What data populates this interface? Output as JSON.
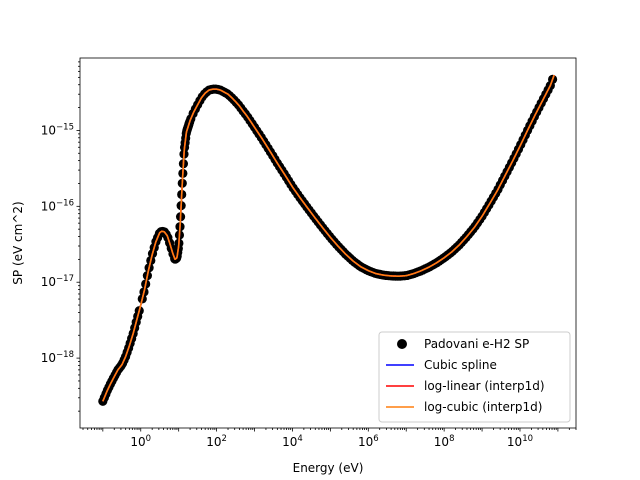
{
  "chart_data": {
    "type": "scatter",
    "title": "",
    "xlabel": "Energy (eV)",
    "ylabel": "SP (eV cm^2)",
    "xscale": "log",
    "yscale": "log",
    "xlim": [
      0.025,
      300000000000
    ],
    "ylim": [
      1.2e-19,
      9e-15
    ],
    "grid": false,
    "legend_position": "lower-right",
    "x_ticks": [
      {
        "base": "10",
        "exp": "0",
        "value": 1
      },
      {
        "base": "10",
        "exp": "2",
        "value": 100
      },
      {
        "base": "10",
        "exp": "4",
        "value": 10000
      },
      {
        "base": "10",
        "exp": "6",
        "value": 1000000
      },
      {
        "base": "10",
        "exp": "8",
        "value": 100000000
      },
      {
        "base": "10",
        "exp": "10",
        "value": 10000000000
      }
    ],
    "y_ticks": [
      {
        "base": "10",
        "exp": "−18",
        "value": 1e-18
      },
      {
        "base": "10",
        "exp": "−17",
        "value": 1e-17
      },
      {
        "base": "10",
        "exp": "−16",
        "value": 1e-16
      },
      {
        "base": "10",
        "exp": "−15",
        "value": 1e-15
      }
    ],
    "series": [
      {
        "name": "Padovani e-H2 SP",
        "kind": "scatter",
        "color": "#000000"
      },
      {
        "name": "Cubic spline",
        "kind": "line",
        "color": "#0000ff"
      },
      {
        "name": "log-linear (interp1d)",
        "kind": "line",
        "color": "#ff0000"
      },
      {
        "name": "log-cubic (interp1d)",
        "kind": "line",
        "color": "#ff7f0e"
      }
    ],
    "curve": [
      [
        0.1,
        2.7e-19
      ],
      [
        0.13,
        3.7e-19
      ],
      [
        0.16,
        4.6e-19
      ],
      [
        0.2,
        5.7e-19
      ],
      [
        0.25,
        7e-19
      ],
      [
        0.32,
        8.2e-19
      ],
      [
        0.4,
        1.05e-18
      ],
      [
        0.5,
        1.45e-18
      ],
      [
        0.63,
        2.1e-18
      ],
      [
        0.8,
        3.3e-18
      ],
      [
        1.0,
        5e-18
      ],
      [
        1.26,
        8e-18
      ],
      [
        1.58,
        1.4e-17
      ],
      [
        2.0,
        2.3e-17
      ],
      [
        2.5,
        3.4e-17
      ],
      [
        3.16,
        4.5e-17
      ],
      [
        3.6,
        4.7e-17
      ],
      [
        4.2,
        4.6e-17
      ],
      [
        5.0,
        4.1e-17
      ],
      [
        6.0,
        3.1e-17
      ],
      [
        7.0,
        2.4e-17
      ],
      [
        8.0,
        2e-17
      ],
      [
        9.0,
        2.1e-17
      ],
      [
        10.0,
        3e-17
      ],
      [
        11.0,
        6e-17
      ],
      [
        12.5,
        2.1e-16
      ],
      [
        14.0,
        5.5e-16
      ],
      [
        16.0,
        9.5e-16
      ],
      [
        20.0,
        1.35e-15
      ],
      [
        25.0,
        1.75e-15
      ],
      [
        32.0,
        2.2e-15
      ],
      [
        40.0,
        2.7e-15
      ],
      [
        50.0,
        3.1e-15
      ],
      [
        63.0,
        3.4e-15
      ],
      [
        80.0,
        3.5e-15
      ],
      [
        100,
        3.5e-15
      ],
      [
        126,
        3.4e-15
      ],
      [
        158,
        3.2e-15
      ],
      [
        200,
        3e-15
      ],
      [
        251,
        2.7e-15
      ],
      [
        316,
        2.4e-15
      ],
      [
        400,
        2.1e-15
      ],
      [
        500,
        1.8e-15
      ],
      [
        631,
        1.55e-15
      ],
      [
        800,
        1.3e-15
      ],
      [
        1000,
        1.1e-15
      ],
      [
        1580,
        7.8e-16
      ],
      [
        2510,
        5.4e-16
      ],
      [
        4000,
        3.7e-16
      ],
      [
        6310,
        2.6e-16
      ],
      [
        10000,
        1.8e-16
      ],
      [
        15800,
        1.3e-16
      ],
      [
        25100,
        9.5e-17
      ],
      [
        39800,
        7e-17
      ],
      [
        63100,
        5.2e-17
      ],
      [
        100000,
        3.9e-17
      ],
      [
        158000,
        3e-17
      ],
      [
        251000,
        2.35e-17
      ],
      [
        398000,
        1.9e-17
      ],
      [
        631000,
        1.6e-17
      ],
      [
        1000000,
        1.42e-17
      ],
      [
        1580000,
        1.3e-17
      ],
      [
        2510000,
        1.24e-17
      ],
      [
        3980000,
        1.21e-17
      ],
      [
        6310000,
        1.2e-17
      ],
      [
        10000000,
        1.22e-17
      ],
      [
        15800000,
        1.3e-17
      ],
      [
        25100000,
        1.42e-17
      ],
      [
        39800000,
        1.58e-17
      ],
      [
        63100000,
        1.8e-17
      ],
      [
        100000000,
        2.1e-17
      ],
      [
        158000000,
        2.5e-17
      ],
      [
        251000000,
        3.1e-17
      ],
      [
        398000000,
        4e-17
      ],
      [
        631000000,
        5.3e-17
      ],
      [
        1000000000,
        7.4e-17
      ],
      [
        1580000000,
        1.08e-16
      ],
      [
        2510000000,
        1.6e-16
      ],
      [
        3980000000,
        2.5e-16
      ],
      [
        6310000000,
        3.9e-16
      ],
      [
        10000000000,
        6.2e-16
      ],
      [
        15800000000,
        1e-15
      ],
      [
        25100000000,
        1.6e-15
      ],
      [
        39800000000,
        2.5e-15
      ],
      [
        63100000000,
        3.9e-15
      ],
      [
        80000000000,
        5.4e-15
      ]
    ]
  }
}
